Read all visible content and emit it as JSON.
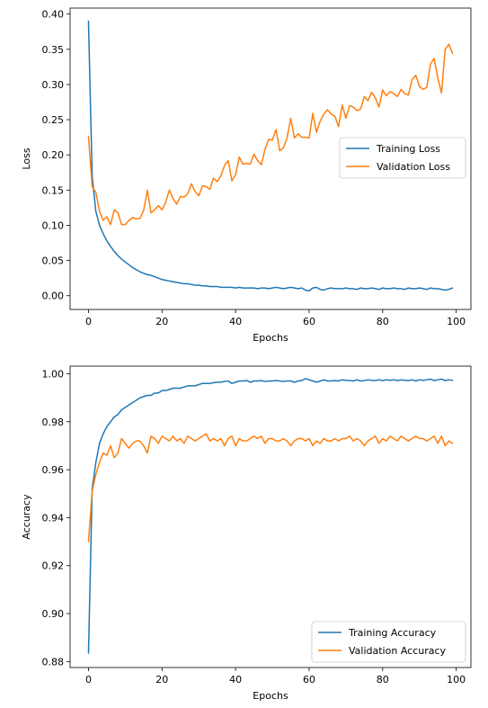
{
  "chart_data": [
    {
      "type": "line",
      "title": "",
      "xlabel": "Epochs",
      "ylabel": "Loss",
      "xlim": [
        -5,
        104
      ],
      "ylim": [
        -0.0195,
        0.4085
      ],
      "xticks": [
        0,
        20,
        40,
        60,
        80,
        100
      ],
      "yticks": [
        0.0,
        0.05,
        0.1,
        0.15,
        0.2,
        0.25,
        0.3,
        0.35,
        0.4
      ],
      "ytick_labels": [
        "0.00",
        "0.05",
        "0.10",
        "0.15",
        "0.20",
        "0.25",
        "0.30",
        "0.35",
        "0.40"
      ],
      "grid": false,
      "legend_position": "center-right",
      "series": [
        {
          "name": "Training Loss",
          "color": "#1f77b4",
          "x_start": 0,
          "values": [
            0.39,
            0.17,
            0.12,
            0.1,
            0.088,
            0.078,
            0.07,
            0.063,
            0.057,
            0.052,
            0.048,
            0.044,
            0.04,
            0.037,
            0.034,
            0.032,
            0.03,
            0.029,
            0.027,
            0.025,
            0.023,
            0.022,
            0.021,
            0.02,
            0.019,
            0.018,
            0.017,
            0.017,
            0.016,
            0.015,
            0.015,
            0.014,
            0.014,
            0.013,
            0.013,
            0.013,
            0.012,
            0.012,
            0.012,
            0.012,
            0.011,
            0.012,
            0.011,
            0.011,
            0.011,
            0.011,
            0.01,
            0.011,
            0.011,
            0.01,
            0.011,
            0.012,
            0.011,
            0.01,
            0.011,
            0.012,
            0.011,
            0.01,
            0.011,
            0.008,
            0.007,
            0.011,
            0.012,
            0.009,
            0.008,
            0.01,
            0.011,
            0.01,
            0.01,
            0.01,
            0.011,
            0.01,
            0.01,
            0.009,
            0.011,
            0.01,
            0.01,
            0.011,
            0.01,
            0.009,
            0.011,
            0.01,
            0.01,
            0.011,
            0.01,
            0.01,
            0.009,
            0.011,
            0.01,
            0.01,
            0.011,
            0.01,
            0.009,
            0.011,
            0.01,
            0.01,
            0.009,
            0.008,
            0.009,
            0.011
          ]
        },
        {
          "name": "Validation Loss",
          "color": "#ff7f0e",
          "x_start": 0,
          "values": [
            0.226,
            0.155,
            0.147,
            0.12,
            0.107,
            0.112,
            0.101,
            0.122,
            0.118,
            0.101,
            0.101,
            0.107,
            0.111,
            0.109,
            0.11,
            0.121,
            0.15,
            0.118,
            0.122,
            0.128,
            0.122,
            0.133,
            0.15,
            0.138,
            0.13,
            0.141,
            0.14,
            0.145,
            0.159,
            0.148,
            0.142,
            0.156,
            0.155,
            0.151,
            0.167,
            0.162,
            0.17,
            0.185,
            0.192,
            0.163,
            0.172,
            0.197,
            0.187,
            0.188,
            0.187,
            0.201,
            0.192,
            0.186,
            0.208,
            0.222,
            0.221,
            0.236,
            0.206,
            0.21,
            0.224,
            0.252,
            0.224,
            0.23,
            0.225,
            0.225,
            0.224,
            0.259,
            0.232,
            0.248,
            0.258,
            0.264,
            0.258,
            0.255,
            0.24,
            0.271,
            0.252,
            0.27,
            0.268,
            0.263,
            0.265,
            0.283,
            0.277,
            0.289,
            0.281,
            0.268,
            0.292,
            0.284,
            0.29,
            0.287,
            0.283,
            0.293,
            0.287,
            0.285,
            0.307,
            0.313,
            0.297,
            0.293,
            0.296,
            0.329,
            0.337,
            0.309,
            0.288,
            0.35,
            0.357,
            0.344
          ]
        }
      ]
    },
    {
      "type": "line",
      "title": "",
      "xlabel": "Epochs",
      "ylabel": "Accuracy",
      "xlim": [
        -5,
        104
      ],
      "ylim": [
        0.8775,
        1.0032
      ],
      "xticks": [
        0,
        20,
        40,
        60,
        80,
        100
      ],
      "yticks": [
        0.88,
        0.9,
        0.92,
        0.94,
        0.96,
        0.98,
        1.0
      ],
      "ytick_labels": [
        "0.88",
        "0.90",
        "0.92",
        "0.94",
        "0.96",
        "0.98",
        "1.00"
      ],
      "grid": false,
      "legend_position": "lower-right",
      "series": [
        {
          "name": "Training Accuracy",
          "color": "#1f77b4",
          "x_start": 0,
          "values": [
            0.8835,
            0.952,
            0.963,
            0.971,
            0.975,
            0.978,
            0.98,
            0.982,
            0.983,
            0.985,
            0.986,
            0.987,
            0.988,
            0.989,
            0.99,
            0.9905,
            0.991,
            0.991,
            0.992,
            0.992,
            0.993,
            0.993,
            0.9935,
            0.994,
            0.994,
            0.994,
            0.9945,
            0.995,
            0.995,
            0.995,
            0.9955,
            0.996,
            0.996,
            0.996,
            0.9963,
            0.9965,
            0.9965,
            0.9968,
            0.997,
            0.996,
            0.9965,
            0.997,
            0.997,
            0.9972,
            0.9965,
            0.997,
            0.997,
            0.9972,
            0.9968,
            0.997,
            0.997,
            0.9972,
            0.997,
            0.9968,
            0.997,
            0.997,
            0.9965,
            0.997,
            0.9972,
            0.998,
            0.9975,
            0.997,
            0.9965,
            0.997,
            0.9975,
            0.997,
            0.997,
            0.9972,
            0.997,
            0.9975,
            0.9973,
            0.9972,
            0.997,
            0.9975,
            0.997,
            0.9972,
            0.9975,
            0.9973,
            0.9972,
            0.9975,
            0.9972,
            0.9975,
            0.9973,
            0.9975,
            0.9972,
            0.9975,
            0.9973,
            0.9972,
            0.9975,
            0.997,
            0.9975,
            0.9973,
            0.9975,
            0.9978,
            0.9972,
            0.9975,
            0.9978,
            0.9972,
            0.9975,
            0.9973
          ]
        },
        {
          "name": "Validation Accuracy",
          "color": "#ff7f0e",
          "x_start": 0,
          "values": [
            0.93,
            0.951,
            0.958,
            0.963,
            0.967,
            0.966,
            0.97,
            0.965,
            0.967,
            0.973,
            0.971,
            0.969,
            0.971,
            0.972,
            0.972,
            0.97,
            0.967,
            0.974,
            0.973,
            0.971,
            0.974,
            0.973,
            0.972,
            0.974,
            0.972,
            0.973,
            0.971,
            0.974,
            0.973,
            0.972,
            0.973,
            0.974,
            0.975,
            0.972,
            0.973,
            0.972,
            0.973,
            0.97,
            0.973,
            0.974,
            0.97,
            0.973,
            0.972,
            0.972,
            0.973,
            0.974,
            0.973,
            0.974,
            0.971,
            0.973,
            0.973,
            0.972,
            0.972,
            0.973,
            0.972,
            0.97,
            0.972,
            0.973,
            0.973,
            0.972,
            0.973,
            0.97,
            0.972,
            0.971,
            0.973,
            0.972,
            0.972,
            0.973,
            0.972,
            0.973,
            0.973,
            0.974,
            0.972,
            0.973,
            0.972,
            0.97,
            0.972,
            0.973,
            0.974,
            0.971,
            0.973,
            0.972,
            0.974,
            0.973,
            0.972,
            0.974,
            0.973,
            0.972,
            0.973,
            0.974,
            0.973,
            0.973,
            0.972,
            0.973,
            0.974,
            0.971,
            0.974,
            0.97,
            0.972,
            0.971
          ]
        }
      ]
    }
  ]
}
